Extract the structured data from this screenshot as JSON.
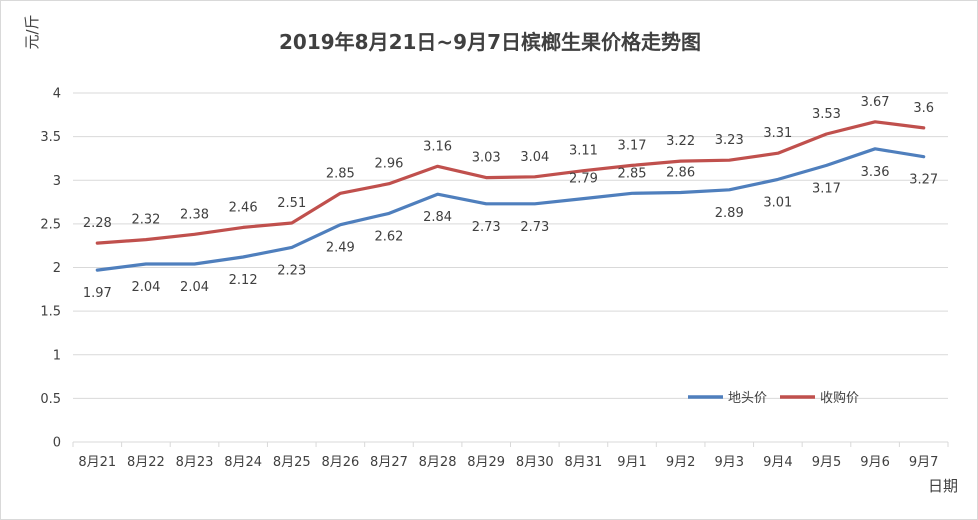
{
  "chart_data": {
    "type": "line",
    "title": "2019年8月21日~9月7日槟榔生果价格走势图",
    "xlabel": "日期",
    "ylabel": "元/斤",
    "categories": [
      "8月21",
      "8月22",
      "8月23",
      "8月24",
      "8月25",
      "8月26",
      "8月27",
      "8月28",
      "8月29",
      "8月30",
      "8月31",
      "9月1",
      "9月2",
      "9月3",
      "9月4",
      "9月5",
      "9月6",
      "9月7"
    ],
    "y_ticks": [
      "0",
      "0.5",
      "1",
      "1.5",
      "2",
      "2.5",
      "3",
      "3.5",
      "4"
    ],
    "ylim": [
      0,
      4
    ],
    "grid": true,
    "legend_position": "bottom-right",
    "series": [
      {
        "name": "地头价",
        "color": "#4F7FBD",
        "values": [
          1.97,
          2.04,
          2.04,
          2.12,
          2.23,
          2.49,
          2.62,
          2.84,
          2.73,
          2.73,
          2.79,
          2.85,
          2.86,
          2.89,
          3.01,
          3.17,
          3.36,
          3.27
        ],
        "labels": [
          "1.97",
          "2.04",
          "2.04",
          "2.12",
          "2.23",
          "2.49",
          "2.62",
          "2.84",
          "2.73",
          "2.73",
          "2.79",
          "2.85",
          "2.86",
          "2.89",
          "3.01",
          "3.17",
          "3.36",
          "3.27"
        ],
        "label_side": [
          "below",
          "below",
          "below",
          "below",
          "below",
          "below",
          "below",
          "below",
          "below",
          "below",
          "above",
          "above",
          "above",
          "below",
          "below",
          "below",
          "below",
          "below"
        ]
      },
      {
        "name": "收购价",
        "color": "#C0504D",
        "values": [
          2.28,
          2.32,
          2.38,
          2.46,
          2.51,
          2.85,
          2.96,
          3.16,
          3.03,
          3.04,
          3.11,
          3.17,
          3.22,
          3.23,
          3.31,
          3.53,
          3.67,
          3.6
        ],
        "labels": [
          "2.28",
          "2.32",
          "2.38",
          "2.46",
          "2.51",
          "2.85",
          "2.96",
          "3.16",
          "3.03",
          "3.04",
          "3.11",
          "3.17",
          "3.22",
          "3.23",
          "3.31",
          "3.53",
          "3.67",
          "3.6"
        ],
        "label_side": [
          "above",
          "above",
          "above",
          "above",
          "above",
          "above",
          "above",
          "above",
          "above",
          "above",
          "above",
          "above",
          "above",
          "above",
          "above",
          "above",
          "above",
          "above"
        ]
      }
    ]
  }
}
